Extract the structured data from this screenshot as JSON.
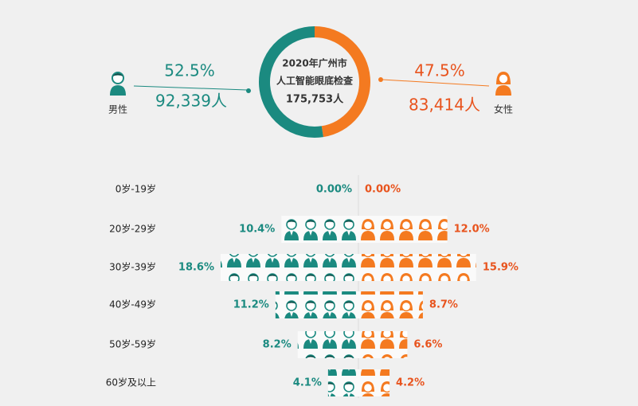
{
  "chart_data": {
    "type": "pictogram",
    "title": "2020年广州市",
    "subtitle": "人工智能眼底检查",
    "total": 175753,
    "total_label": "175,753人",
    "categories": [
      "0岁-19岁",
      "20岁-29岁",
      "30岁-39岁",
      "40岁-49岁",
      "50岁-59岁",
      "60岁及以上"
    ],
    "series": [
      {
        "name": "男性",
        "color": "#1b8a80",
        "share": 52.5,
        "share_label": "52.5%",
        "count": 92339,
        "count_label": "92,339人",
        "values": [
          0,
          10.4,
          18.6,
          11.2,
          8.2,
          4.1
        ],
        "value_labels": [
          "0.00%",
          "10.4%",
          "18.6%",
          "11.2%",
          "8.2%",
          "4.1%"
        ]
      },
      {
        "name": "女性",
        "color": "#f47a20",
        "share": 47.5,
        "share_label": "47.5%",
        "count": 83414,
        "count_label": "83,414人",
        "values": [
          0,
          12.0,
          15.9,
          8.7,
          6.6,
          4.2
        ],
        "value_labels": [
          "0.00%",
          "12.0%",
          "15.9%",
          "8.7%",
          "6.6%",
          "4.2%"
        ]
      }
    ]
  }
}
